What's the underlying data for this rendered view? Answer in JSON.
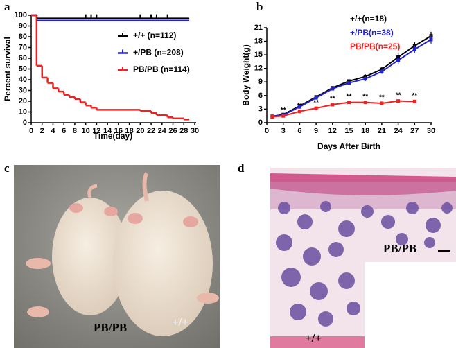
{
  "chart_data": [
    {
      "type": "step",
      "panel": "a",
      "xlabel": "Time(day)",
      "ylabel": "Percent survival",
      "xlim": [
        0,
        30
      ],
      "xticks": [
        0,
        2,
        4,
        6,
        8,
        10,
        12,
        14,
        16,
        18,
        20,
        22,
        24,
        26,
        28,
        30
      ],
      "ylim": [
        0,
        100
      ],
      "yticks": [
        0,
        10,
        20,
        30,
        40,
        50,
        60,
        70,
        80,
        90,
        100
      ],
      "legend_style": "line",
      "series": [
        {
          "name": "+/+ (n=112)",
          "color": "#000000",
          "x": [
            0,
            1,
            29
          ],
          "values": [
            100,
            97,
            97
          ],
          "censored": [
            10,
            11,
            12,
            20,
            22,
            23,
            25
          ]
        },
        {
          "name": "+/PB (n=208)",
          "color": "#2222cc",
          "x": [
            0,
            1,
            29
          ],
          "values": [
            100,
            95,
            95
          ]
        },
        {
          "name": "PB/PB (n=114)",
          "color": "#ee2222",
          "x": [
            0,
            1,
            2,
            3,
            4,
            5,
            6,
            7,
            8,
            9,
            10,
            11,
            12,
            20,
            22,
            23,
            25,
            26,
            28,
            29
          ],
          "values": [
            100,
            53,
            42,
            37,
            32,
            29,
            26,
            24,
            22,
            19,
            16,
            14,
            12,
            11,
            9,
            7,
            5,
            4,
            3,
            3
          ]
        }
      ]
    },
    {
      "type": "line",
      "panel": "b",
      "xlabel": "Days After Birth",
      "ylabel": "Body Weight(g)",
      "x": [
        1,
        3,
        6,
        9,
        12,
        15,
        18,
        21,
        24,
        27,
        30
      ],
      "xlim": [
        0,
        30
      ],
      "xticks": [
        0,
        3,
        6,
        9,
        12,
        15,
        18,
        21,
        24,
        27,
        30
      ],
      "ylim": [
        0,
        21
      ],
      "yticks": [
        0,
        3,
        6,
        9,
        12,
        15,
        18,
        21
      ],
      "legend_style": "text",
      "series": [
        {
          "name": "+/+(n=18)",
          "color": "#000000",
          "values": [
            1.4,
            1.8,
            3.7,
            5.7,
            7.7,
            9.2,
            10.2,
            11.8,
            14.5,
            17,
            19.2
          ],
          "errors": [
            0.1,
            0.1,
            0.2,
            0.2,
            0.3,
            0.4,
            0.5,
            0.5,
            0.8,
            0.8,
            0.9
          ]
        },
        {
          "name": "+/PB(n=38)",
          "color": "#2222cc",
          "values": [
            1.4,
            1.7,
            3.5,
            5.5,
            7.5,
            8.8,
            9.7,
            11.3,
            13.8,
            16.2,
            18.4
          ],
          "errors": [
            0.1,
            0.1,
            0.2,
            0.2,
            0.3,
            0.4,
            0.5,
            0.5,
            0.8,
            0.8,
            0.9
          ]
        },
        {
          "name": "PB/PB(n=25)",
          "color": "#ee2222",
          "values": [
            1.3,
            1.5,
            2.5,
            3.2,
            4,
            4.5,
            4.5,
            4.3,
            4.8,
            4.7,
            null
          ],
          "errors": [
            0.1,
            0.1,
            0.2,
            0.2,
            0.2,
            0.2,
            0.2,
            0.2,
            0.2,
            0.2,
            null
          ]
        }
      ],
      "annotations": [
        {
          "text": "**",
          "x": 3
        },
        {
          "text": "**",
          "x": 6
        },
        {
          "text": "**",
          "x": 9
        },
        {
          "text": "**",
          "x": 12
        },
        {
          "text": "**",
          "x": 15
        },
        {
          "text": "**",
          "x": 18
        },
        {
          "text": "**",
          "x": 21
        },
        {
          "text": "**",
          "x": 24
        },
        {
          "text": "**",
          "x": 27
        }
      ]
    }
  ],
  "panel_c": {
    "label": "c",
    "left_label": "PB/PB",
    "right_label": "+/+"
  },
  "panel_d": {
    "label": "d",
    "inset_label": "PB/PB",
    "main_label": "+/+"
  }
}
